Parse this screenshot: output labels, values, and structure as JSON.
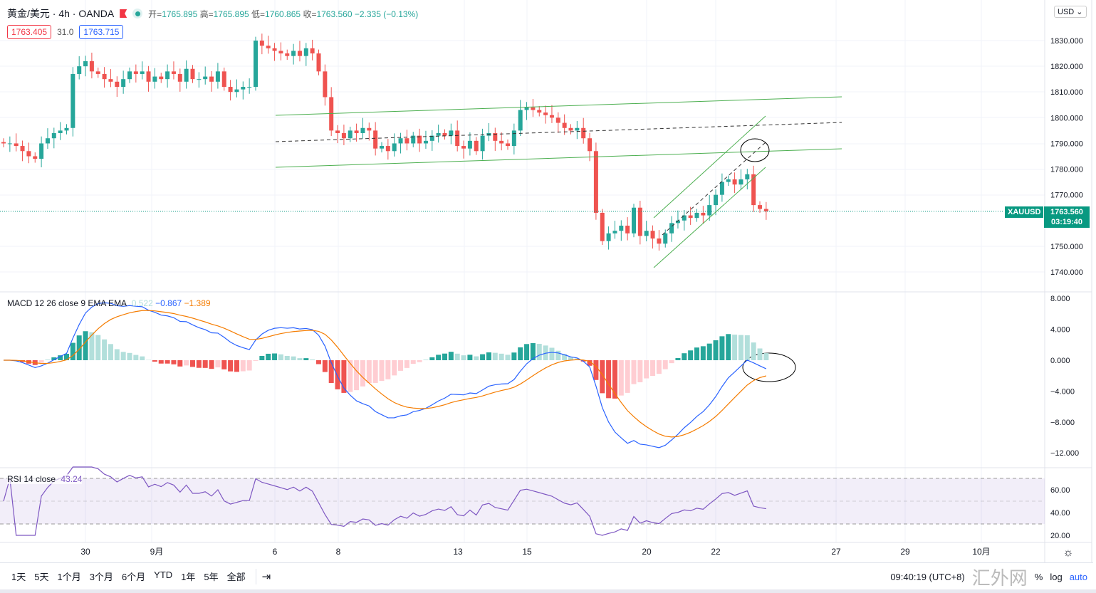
{
  "header": {
    "symbol": "黄金/美元",
    "interval": "4h",
    "source": "OANDA",
    "open_label": "开=",
    "open": "1765.895",
    "high_label": "高=",
    "high": "1765.895",
    "low_label": "低=",
    "low": "1760.865",
    "close_label": "收=",
    "close": "1763.560",
    "change": "−2.335 (−0.13%)",
    "bid": "1763.405",
    "spread": "31.0",
    "ask": "1763.715"
  },
  "colors": {
    "up": "#26a69a",
    "down": "#ef5350",
    "macd": "#2962ff",
    "signal": "#f57c00",
    "rsi": "#7e57c2",
    "channel": "#4caf50"
  },
  "price_axis": {
    "currency": "USD",
    "ticks": [
      "1830.000",
      "1820.000",
      "1810.000",
      "1800.000",
      "1790.000",
      "1780.000",
      "1770.000",
      "1750.000",
      "1740.000"
    ],
    "symbol_tag": "XAUUSD",
    "last_price": "1763.560",
    "countdown": "03:19:40"
  },
  "macd": {
    "label": "MACD 12 26 close 9 EMA EMA",
    "hist": "0.522",
    "macd": "−0.867",
    "signal": "−1.389",
    "ticks": [
      "8.000",
      "4.000",
      "0.000",
      "−4.000",
      "−8.000",
      "−12.000"
    ]
  },
  "rsi": {
    "label": "RSI 14 close",
    "value": "43.24",
    "ticks": [
      "60.00",
      "40.00",
      "20.00"
    ]
  },
  "time_axis": [
    "30",
    "9月",
    "6",
    "8",
    "13",
    "15",
    "20",
    "22",
    "27",
    "29",
    "10月"
  ],
  "toolbar": {
    "ranges": [
      "1天",
      "5天",
      "1个月",
      "3个月",
      "6个月",
      "YTD",
      "1年",
      "5年",
      "全部"
    ],
    "goto_icon": "calendar-goto-icon",
    "clock": "09:40:19 (UTC+8)",
    "percent": "%",
    "log": "log",
    "auto": "auto",
    "watermark": "汇外网"
  },
  "chart_data": {
    "type": "candlestick",
    "series": "XAUUSD 4h",
    "ylim": [
      1738,
      1838
    ],
    "closes": [
      1790,
      1790,
      1789,
      1787,
      1785,
      1784,
      1790,
      1792,
      1794,
      1795,
      1796,
      1817,
      1820,
      1822,
      1818,
      1817,
      1815,
      1814,
      1812,
      1815,
      1818,
      1817,
      1818,
      1814,
      1816,
      1815,
      1818,
      1817,
      1814,
      1819,
      1815,
      1815,
      1816,
      1814,
      1818,
      1812,
      1810,
      1811,
      1812,
      1812,
      1830,
      1828,
      1827,
      1826,
      1825,
      1824,
      1826,
      1824,
      1827,
      1825,
      1818,
      1808,
      1795,
      1794,
      1792,
      1795,
      1794,
      1796,
      1795,
      1788,
      1789,
      1787,
      1790,
      1792,
      1790,
      1793,
      1790,
      1791,
      1793,
      1794,
      1793,
      1795,
      1789,
      1788,
      1791,
      1787,
      1793,
      1794,
      1791,
      1790,
      1789,
      1795,
      1803,
      1804,
      1803,
      1802,
      1801,
      1800,
      1798,
      1796,
      1795,
      1796,
      1792,
      1787,
      1763,
      1752,
      1755,
      1756,
      1758,
      1755,
      1765,
      1754,
      1756,
      1753,
      1751,
      1755,
      1759,
      1760,
      1762,
      1761,
      1763,
      1762,
      1766,
      1770,
      1775,
      1776,
      1774,
      1776,
      1778,
      1766,
      1764.5,
      1763.56
    ]
  }
}
